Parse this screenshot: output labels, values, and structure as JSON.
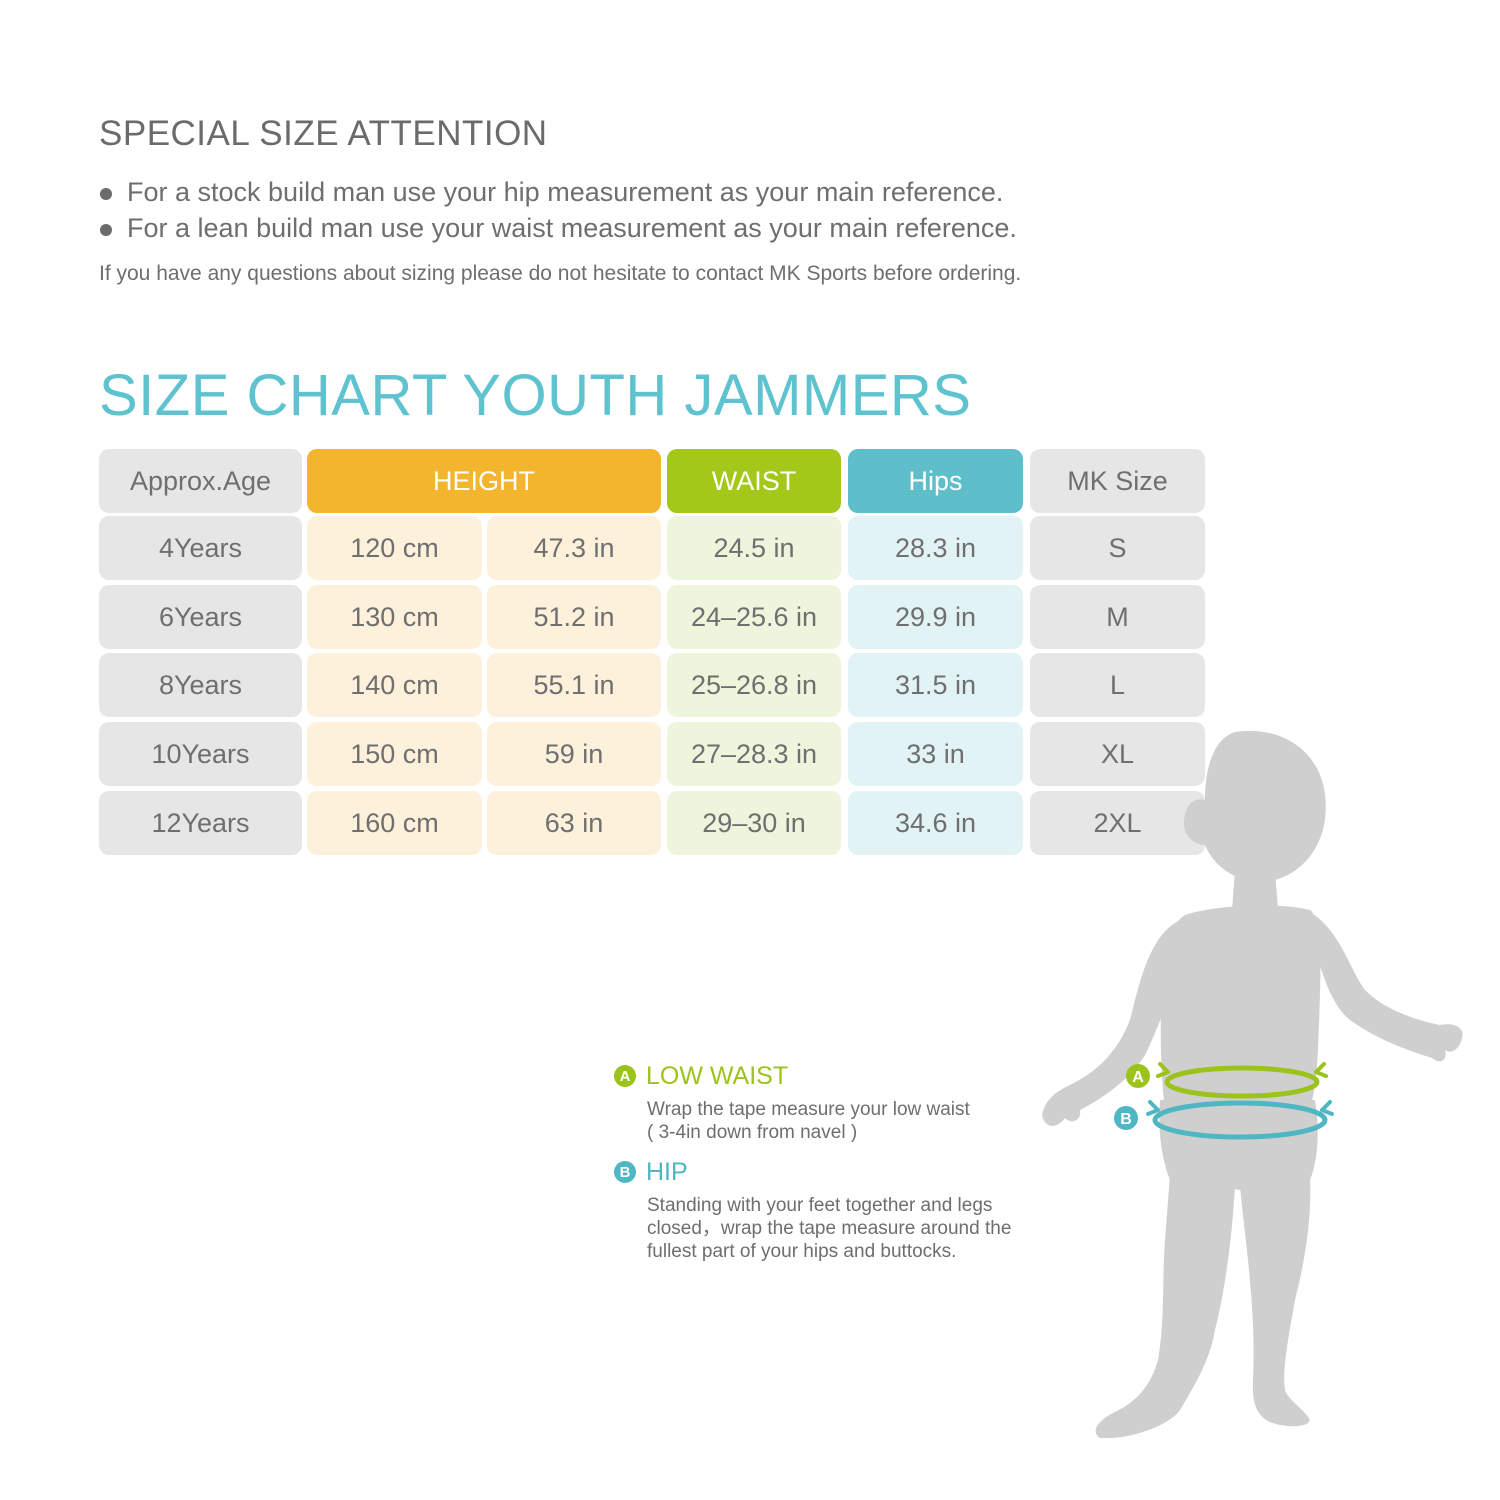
{
  "attention": {
    "title": "SPECIAL SIZE ATTENTION",
    "bullets": [
      "For a stock build man use your hip measurement as your main reference.",
      "For a lean build man use your waist measurement as your main reference."
    ],
    "contact_note": "If you have any questions about sizing please do not hesitate to contact MK Sports before ordering."
  },
  "chart": {
    "title": "SIZE CHART YOUTH JAMMERS",
    "headers": {
      "age": "Approx.Age",
      "height": "HEIGHT",
      "waist": "WAIST",
      "hips": "Hips",
      "size": "MK Size"
    },
    "rows": [
      {
        "age": "4Years",
        "height_cm": "120 cm",
        "height_in": "47.3 in",
        "waist": "24.5 in",
        "hips": "28.3 in",
        "size": "S"
      },
      {
        "age": "6Years",
        "height_cm": "130 cm",
        "height_in": "51.2 in",
        "waist": "24–25.6 in",
        "hips": "29.9 in",
        "size": "M"
      },
      {
        "age": "8Years",
        "height_cm": "140 cm",
        "height_in": "55.1 in",
        "waist": "25–26.8 in",
        "hips": "31.5 in",
        "size": "L"
      },
      {
        "age": "10Years",
        "height_cm": "150 cm",
        "height_in": "59 in",
        "waist": "27–28.3 in",
        "hips": "33 in",
        "size": "XL"
      },
      {
        "age": "12Years",
        "height_cm": "160 cm",
        "height_in": "63 in",
        "waist": "29–30 in",
        "hips": "34.6 in",
        "size": "2XL"
      }
    ],
    "colors": {
      "age_bg": "#e6e6e6",
      "height_header": "#f4b52e",
      "height_bg": "#fdf1dc",
      "waist_header": "#a4c81a",
      "waist_bg": "#eef5dd",
      "hips_header": "#5ebfcb",
      "hips_bg": "#e1f3f5",
      "size_bg": "#e6e6e6"
    }
  },
  "legend": {
    "a": {
      "badge": "A",
      "title": "LOW WAIST",
      "description": "Wrap the tape measure your low waist\n( 3-4in down from navel )",
      "color": "#9bc31c"
    },
    "b": {
      "badge": "B",
      "title": "HIP",
      "description": "Standing with your feet together and legs\nclosed，wrap the tape measure around the\nfullest part of your hips and buttocks.",
      "color": "#4fb6c4"
    }
  },
  "figure": {
    "icon": "child-silhouette-icon",
    "marker_a": "A",
    "marker_b": "B"
  }
}
